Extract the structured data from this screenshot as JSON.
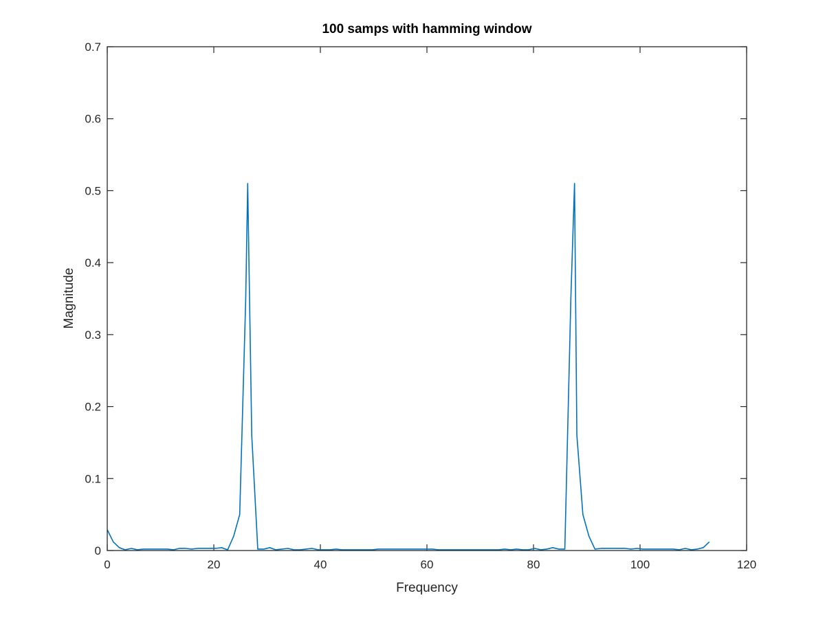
{
  "chart_data": {
    "type": "line",
    "title": "100 samps with hamming window",
    "xlabel": "Frequency",
    "ylabel": "Magnitude",
    "xlim": [
      0,
      120
    ],
    "ylim": [
      0,
      0.7
    ],
    "xticks": [
      0,
      20,
      40,
      60,
      80,
      100,
      120
    ],
    "yticks": [
      0,
      0.1,
      0.2,
      0.3,
      0.4,
      0.5,
      0.6,
      0.7
    ],
    "xtick_labels": [
      "0",
      "20",
      "40",
      "60",
      "80",
      "100",
      "120"
    ],
    "ytick_labels": [
      "0",
      "0.1",
      "0.2",
      "0.3",
      "0.4",
      "0.5",
      "0.6",
      "0.7"
    ],
    "grid": false,
    "legend": "none",
    "line_color": "#0072bd",
    "series": [
      {
        "x": [
          0,
          1.13,
          2.26,
          3.39,
          4.52,
          5.65,
          6.78,
          7.91,
          9.04,
          10.17,
          11.3,
          12.43,
          13.56,
          14.69,
          15.82,
          16.95,
          18.08,
          19.21,
          20.34,
          21.47,
          22.6,
          23.73,
          24.86,
          25.99,
          26.36,
          27.12,
          28.25,
          29.38,
          30.51,
          31.64,
          32.77,
          33.9,
          35.03,
          36.16,
          37.29,
          38.42,
          39.55,
          40.68,
          41.81,
          42.94,
          44.07,
          45.2,
          46.33,
          47.46,
          48.59,
          49.72,
          50.85,
          51.98,
          53.11,
          54.24,
          55.37,
          56.5,
          57.63,
          58.76,
          59.89,
          61.02,
          62.15,
          63.28,
          64.41,
          65.54,
          66.67,
          67.8,
          68.93,
          70.06,
          71.19,
          72.32,
          73.45,
          74.58,
          75.71,
          76.84,
          77.97,
          79.1,
          80.23,
          81.36,
          82.49,
          83.62,
          84.75,
          85.88,
          87.01,
          87.7,
          88.14,
          89.27,
          90.4,
          91.53,
          92.66,
          93.79,
          94.92,
          96.05,
          97.18,
          98.31,
          99.44,
          100.57,
          101.7,
          102.83,
          103.96,
          105.09,
          106.22,
          107.35,
          108.48,
          109.61,
          110.74,
          111.87,
          113
        ],
        "y": [
          0.029,
          0.012,
          0.004,
          0.001,
          0.003,
          0.001,
          0.002,
          0.002,
          0.002,
          0.002,
          0.002,
          0.001,
          0.003,
          0.003,
          0.002,
          0.003,
          0.003,
          0.003,
          0.003,
          0.004,
          0.001,
          0.02,
          0.05,
          0.35,
          0.51,
          0.16,
          0.002,
          0.002,
          0.004,
          0.001,
          0.002,
          0.003,
          0.001,
          0.001,
          0.002,
          0.003,
          0.001,
          0.001,
          0.001,
          0.002,
          0.001,
          0.001,
          0.001,
          0.001,
          0.001,
          0.001,
          0.002,
          0.002,
          0.002,
          0.002,
          0.002,
          0.002,
          0.002,
          0.002,
          0.002,
          0.002,
          0.001,
          0.001,
          0.001,
          0.001,
          0.001,
          0.001,
          0.001,
          0.001,
          0.001,
          0.001,
          0.001,
          0.002,
          0.001,
          0.002,
          0.001,
          0.001,
          0.003,
          0.001,
          0.002,
          0.004,
          0.002,
          0.002,
          0.35,
          0.51,
          0.16,
          0.05,
          0.02,
          0.002,
          0.003,
          0.003,
          0.003,
          0.003,
          0.003,
          0.002,
          0.003,
          0.002,
          0.002,
          0.002,
          0.002,
          0.002,
          0.002,
          0.001,
          0.003,
          0.001,
          0.002,
          0.004,
          0.012
        ]
      }
    ]
  }
}
